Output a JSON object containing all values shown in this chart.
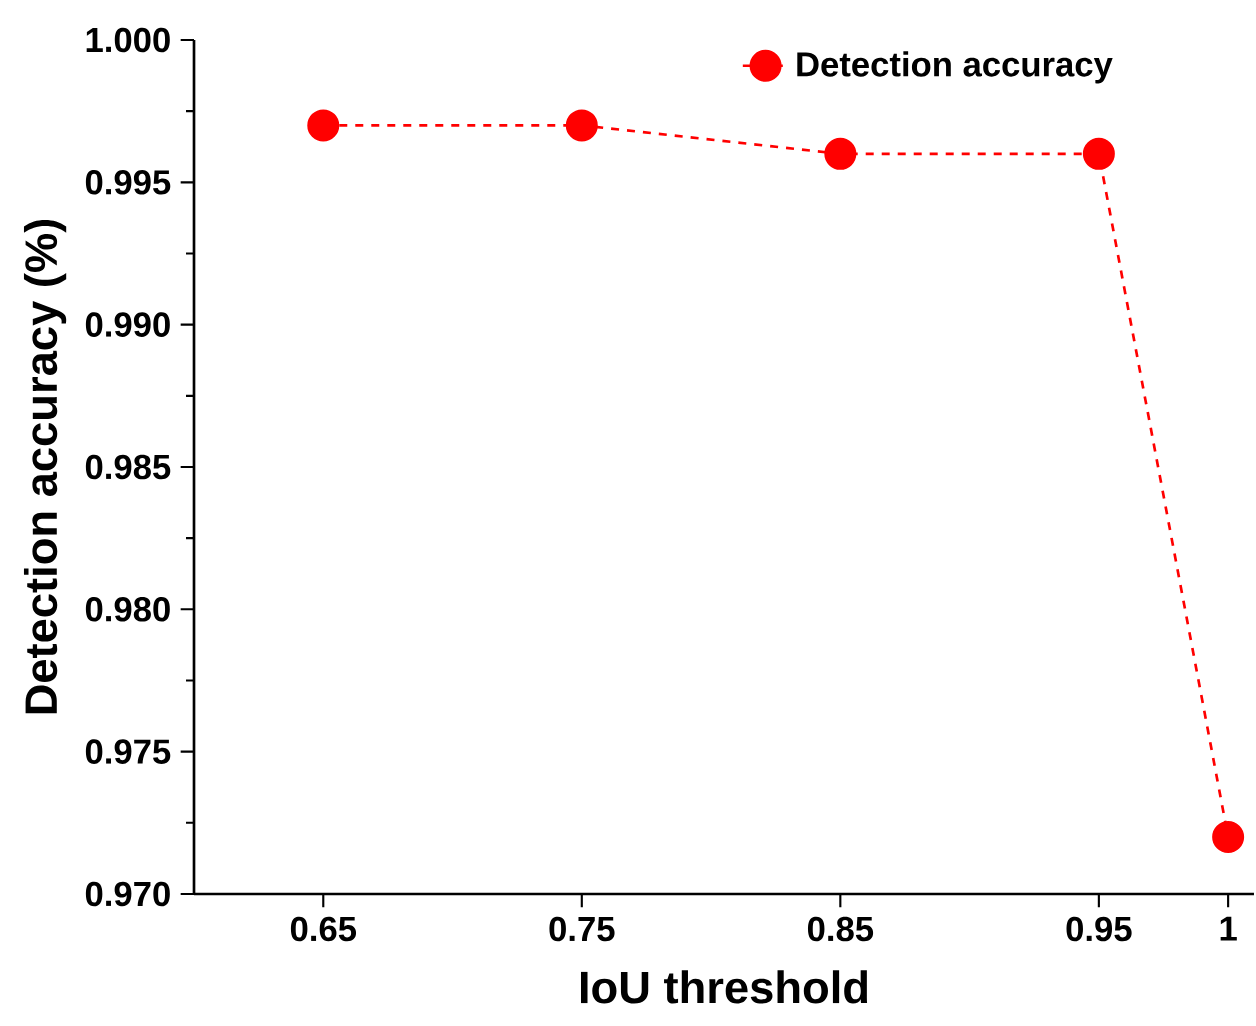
{
  "chart_data": {
    "type": "line",
    "xlabel": "IoU threshold",
    "ylabel": "Detection accuracy (%)",
    "x": [
      0.65,
      0.75,
      0.85,
      0.95,
      1
    ],
    "series": [
      {
        "name": "Detection accuracy",
        "color": "#ff0000",
        "values": [
          0.997,
          0.997,
          0.996,
          0.996,
          0.972
        ]
      }
    ],
    "xlim": [
      0.6,
      1.01
    ],
    "ylim": [
      0.97,
      1.0
    ],
    "xticks": [
      0.65,
      0.75,
      0.85,
      0.95,
      1
    ],
    "yticks": [
      {
        "value": 0.97,
        "label": "0.970"
      },
      {
        "value": 0.975,
        "label": "0.975"
      },
      {
        "value": 0.98,
        "label": "0.980"
      },
      {
        "value": 0.985,
        "label": "0.985"
      },
      {
        "value": 0.99,
        "label": "0.990"
      },
      {
        "value": 0.995,
        "label": "0.995"
      },
      {
        "value": 1.0,
        "label": "1.000"
      }
    ],
    "marker": "circle",
    "line_style": "dashed",
    "legend": "top right",
    "grid": false
  }
}
